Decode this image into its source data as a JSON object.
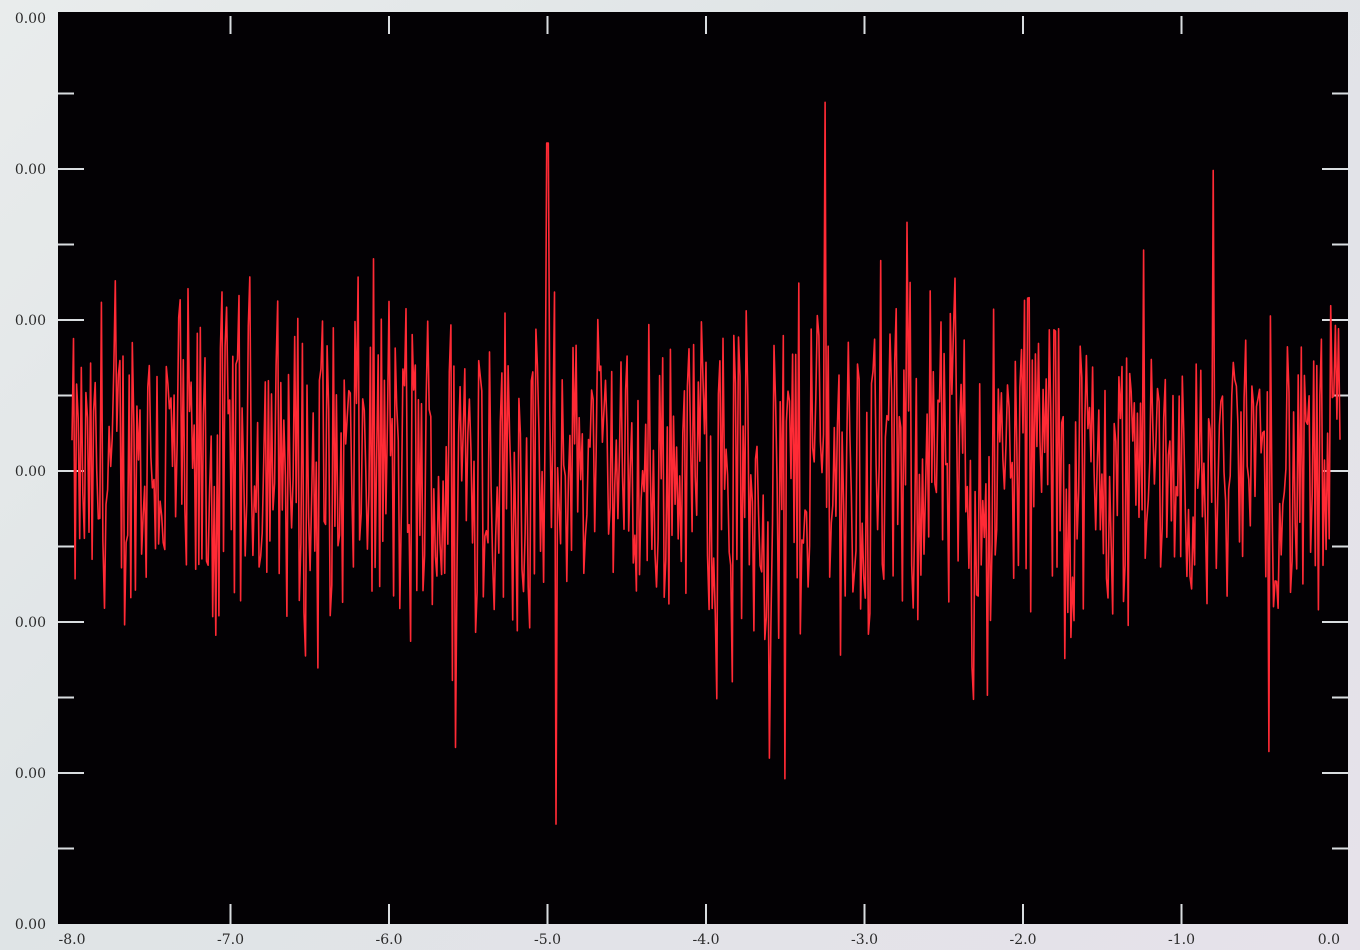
{
  "chart_data": {
    "type": "line",
    "title": "",
    "xlabel": "",
    "ylabel": "",
    "xlim": [
      -8.0,
      0.0
    ],
    "ylim": [
      -1.0,
      1.0
    ],
    "x_tick_labels": [
      "-8.0",
      "-7.0",
      "-6.0",
      "-5.0",
      "-4.0",
      "-3.0",
      "-2.0",
      "-1.0",
      "0.0"
    ],
    "y_tick_labels": [
      "0.00",
      "0.00",
      "0.00",
      "0.00",
      "0.00",
      "0.00",
      "0.00"
    ],
    "grid": false,
    "legend": "none",
    "series": [
      {
        "name": "",
        "color": "#ff2a35",
        "signal": "dense noise waveform centered at 0, amplitude roughly ±0.55 with spikes to about ±0.85",
        "peaks": [
          {
            "x": -3.25,
            "y": 0.81
          },
          {
            "x": -4.95,
            "y": -0.78
          },
          {
            "x": -5.0,
            "y": 0.72
          },
          {
            "x": -3.5,
            "y": -0.68
          },
          {
            "x": -0.45,
            "y": -0.62
          },
          {
            "x": -0.8,
            "y": 0.66
          }
        ]
      }
    ],
    "background_color": "#030104",
    "frame_color": "#d9dde0"
  }
}
